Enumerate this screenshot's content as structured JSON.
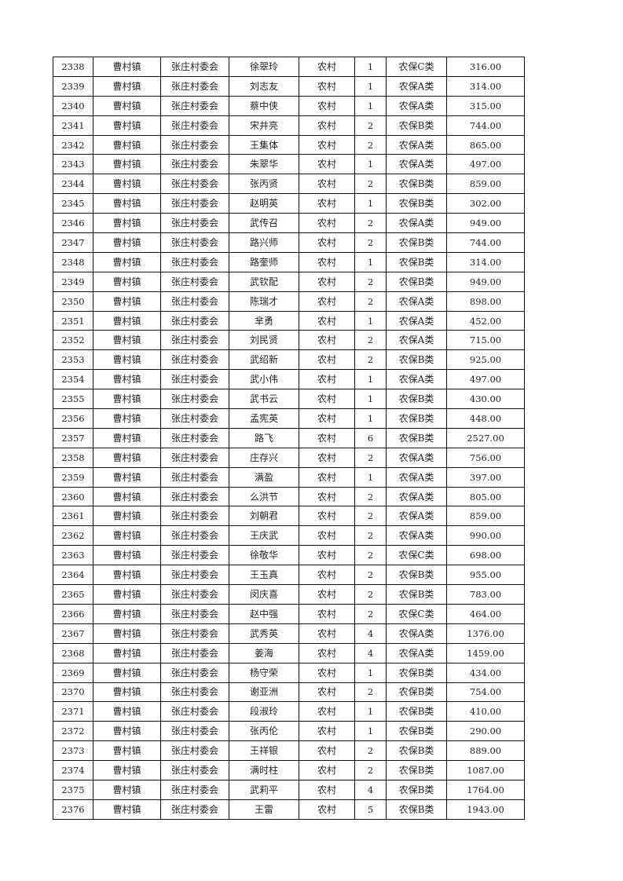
{
  "table": {
    "rows": [
      [
        "2338",
        "曹村镇",
        "张庄村委会",
        "徐翠玲",
        "农村",
        "1",
        "农保C类",
        "316.00"
      ],
      [
        "2339",
        "曹村镇",
        "张庄村委会",
        "刘志友",
        "农村",
        "1",
        "农保A类",
        "314.00"
      ],
      [
        "2340",
        "曹村镇",
        "张庄村委会",
        "蔡中侠",
        "农村",
        "1",
        "农保A类",
        "315.00"
      ],
      [
        "2341",
        "曹村镇",
        "张庄村委会",
        "宋井亮",
        "农村",
        "2",
        "农保B类",
        "744.00"
      ],
      [
        "2342",
        "曹村镇",
        "张庄村委会",
        "王集体",
        "农村",
        "2",
        "农保A类",
        "865.00"
      ],
      [
        "2343",
        "曹村镇",
        "张庄村委会",
        "朱翠华",
        "农村",
        "1",
        "农保A类",
        "497.00"
      ],
      [
        "2344",
        "曹村镇",
        "张庄村委会",
        "张丙贤",
        "农村",
        "2",
        "农保B类",
        "859.00"
      ],
      [
        "2345",
        "曹村镇",
        "张庄村委会",
        "赵明英",
        "农村",
        "1",
        "农保B类",
        "302.00"
      ],
      [
        "2346",
        "曹村镇",
        "张庄村委会",
        "武传召",
        "农村",
        "2",
        "农保A类",
        "949.00"
      ],
      [
        "2347",
        "曹村镇",
        "张庄村委会",
        "路兴师",
        "农村",
        "2",
        "农保B类",
        "744.00"
      ],
      [
        "2348",
        "曹村镇",
        "张庄村委会",
        "路奎师",
        "农村",
        "1",
        "农保B类",
        "314.00"
      ],
      [
        "2349",
        "曹村镇",
        "张庄村委会",
        "武钦配",
        "农村",
        "2",
        "农保B类",
        "949.00"
      ],
      [
        "2350",
        "曹村镇",
        "张庄村委会",
        "陈瑞才",
        "农村",
        "2",
        "农保A类",
        "898.00"
      ],
      [
        "2351",
        "曹村镇",
        "张庄村委会",
        "芈勇",
        "农村",
        "1",
        "农保A类",
        "452.00"
      ],
      [
        "2352",
        "曹村镇",
        "张庄村委会",
        "刘民贤",
        "农村",
        "2",
        "农保A类",
        "715.00"
      ],
      [
        "2353",
        "曹村镇",
        "张庄村委会",
        "武绍新",
        "农村",
        "2",
        "农保B类",
        "925.00"
      ],
      [
        "2354",
        "曹村镇",
        "张庄村委会",
        "武小伟",
        "农村",
        "1",
        "农保A类",
        "497.00"
      ],
      [
        "2355",
        "曹村镇",
        "张庄村委会",
        "武书云",
        "农村",
        "1",
        "农保B类",
        "430.00"
      ],
      [
        "2356",
        "曹村镇",
        "张庄村委会",
        "孟宪英",
        "农村",
        "1",
        "农保B类",
        "448.00"
      ],
      [
        "2357",
        "曹村镇",
        "张庄村委会",
        "路飞",
        "农村",
        "6",
        "农保B类",
        "2527.00"
      ],
      [
        "2358",
        "曹村镇",
        "张庄村委会",
        "庄存兴",
        "农村",
        "2",
        "农保A类",
        "756.00"
      ],
      [
        "2359",
        "曹村镇",
        "张庄村委会",
        "满盈",
        "农村",
        "1",
        "农保A类",
        "397.00"
      ],
      [
        "2360",
        "曹村镇",
        "张庄村委会",
        "么洪节",
        "农村",
        "2",
        "农保A类",
        "805.00"
      ],
      [
        "2361",
        "曹村镇",
        "张庄村委会",
        "刘朝君",
        "农村",
        "2",
        "农保A类",
        "859.00"
      ],
      [
        "2362",
        "曹村镇",
        "张庄村委会",
        "王庆武",
        "农村",
        "2",
        "农保A类",
        "990.00"
      ],
      [
        "2363",
        "曹村镇",
        "张庄村委会",
        "徐敬华",
        "农村",
        "2",
        "农保C类",
        "698.00"
      ],
      [
        "2364",
        "曹村镇",
        "张庄村委会",
        "王玉真",
        "农村",
        "2",
        "农保B类",
        "955.00"
      ],
      [
        "2365",
        "曹村镇",
        "张庄村委会",
        "闵庆喜",
        "农村",
        "2",
        "农保B类",
        "783.00"
      ],
      [
        "2366",
        "曹村镇",
        "张庄村委会",
        "赵中强",
        "农村",
        "2",
        "农保C类",
        "464.00"
      ],
      [
        "2367",
        "曹村镇",
        "张庄村委会",
        "武秀英",
        "农村",
        "4",
        "农保A类",
        "1376.00"
      ],
      [
        "2368",
        "曹村镇",
        "张庄村委会",
        "姜海",
        "农村",
        "4",
        "农保A类",
        "1459.00"
      ],
      [
        "2369",
        "曹村镇",
        "张庄村委会",
        "杨守荣",
        "农村",
        "1",
        "农保B类",
        "434.00"
      ],
      [
        "2370",
        "曹村镇",
        "张庄村委会",
        "谢亚洲",
        "农村",
        "2",
        "农保B类",
        "754.00"
      ],
      [
        "2371",
        "曹村镇",
        "张庄村委会",
        "段淑玲",
        "农村",
        "1",
        "农保B类",
        "410.00"
      ],
      [
        "2372",
        "曹村镇",
        "张庄村委会",
        "张丙伦",
        "农村",
        "1",
        "农保B类",
        "290.00"
      ],
      [
        "2373",
        "曹村镇",
        "张庄村委会",
        "王祥银",
        "农村",
        "2",
        "农保B类",
        "889.00"
      ],
      [
        "2374",
        "曹村镇",
        "张庄村委会",
        "满时柱",
        "农村",
        "2",
        "农保B类",
        "1087.00"
      ],
      [
        "2375",
        "曹村镇",
        "张庄村委会",
        "武莉平",
        "农村",
        "4",
        "农保B类",
        "1764.00"
      ],
      [
        "2376",
        "曹村镇",
        "张庄村委会",
        "王雷",
        "农村",
        "5",
        "农保B类",
        "1943.00"
      ]
    ]
  }
}
